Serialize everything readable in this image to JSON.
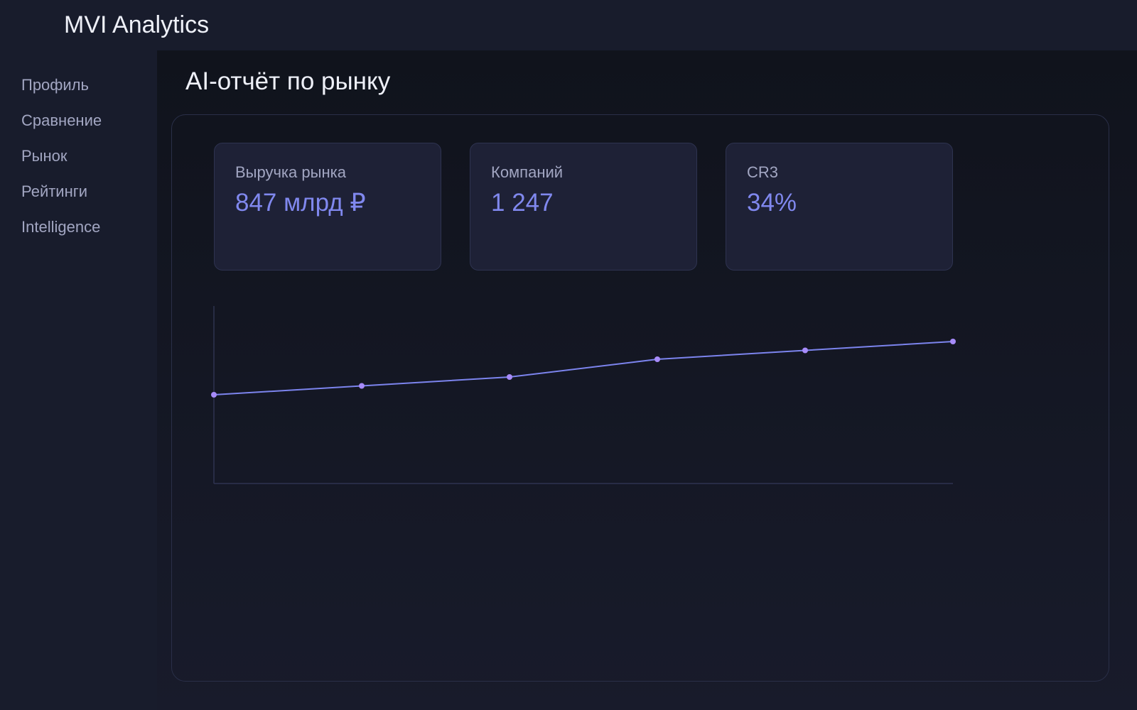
{
  "header": {
    "title": "MVI Analytics"
  },
  "nav": [
    "Профиль",
    "Сравнение",
    "Рынок",
    "Рейтинги",
    "Intelligence"
  ],
  "page_title": "AI-отчёт по рынку",
  "kpis": [
    {
      "label": "Выручка рынка",
      "value": "847 млрд ₽"
    },
    {
      "label": "Компаний",
      "value": "1 247"
    },
    {
      "label": "CR3",
      "value": "34%"
    }
  ],
  "chart_data": {
    "type": "line",
    "values": [
      50,
      55,
      60,
      70,
      75,
      80
    ],
    "ylim": [
      0,
      100
    ],
    "color": "#7c84ee",
    "marker_color": "#a78bfa"
  }
}
